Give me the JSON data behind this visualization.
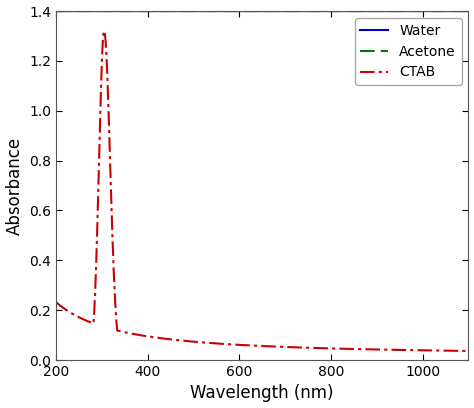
{
  "xlabel": "Wavelength (nm)",
  "ylabel": "Absorbance",
  "xlim": [
    200,
    1100
  ],
  "ylim": [
    0,
    1.4
  ],
  "xticks": [
    200,
    400,
    600,
    800,
    1000
  ],
  "yticks": [
    0,
    0.2,
    0.4,
    0.6,
    0.8,
    1.0,
    1.2,
    1.4
  ],
  "legend": [
    "Water",
    "Acetone",
    "CTAB"
  ],
  "legend_loc": "upper right",
  "water_color": "#0000cc",
  "acetone_color": "#007700",
  "ctab_color": "#cc0000",
  "background_color": "#ffffff",
  "water_lw": 1.5,
  "acetone_lw": 1.5,
  "ctab_lw": 1.5
}
